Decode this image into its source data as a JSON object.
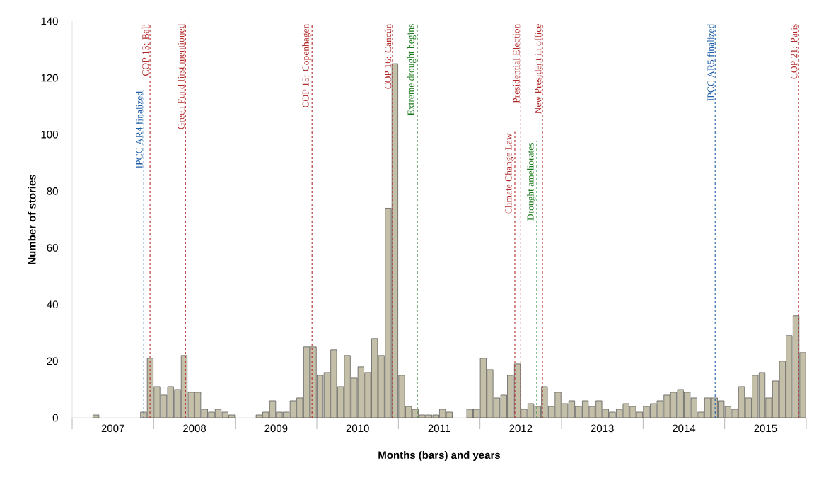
{
  "chart_data": {
    "type": "bar",
    "xlabel": "Months (bars) and years",
    "ylabel": "Number of stories",
    "x": [
      "2007-01-16",
      "2007-02-15",
      "2007-03-16",
      "2007-04-16",
      "2007-05-16",
      "2007-06-16",
      "2007-07-16",
      "2007-08-16",
      "2007-09-16",
      "2007-10-16",
      "2007-11-16",
      "2007-12-16",
      "2008-01-16",
      "2008-02-15",
      "2008-03-16",
      "2008-04-16",
      "2008-05-16",
      "2008-06-16",
      "2008-07-16",
      "2008-08-16",
      "2008-09-16",
      "2008-10-16",
      "2008-11-16",
      "2008-12-16",
      "2009-01-16",
      "2009-02-15",
      "2009-03-16",
      "2009-04-16",
      "2009-05-16",
      "2009-06-16",
      "2009-07-16",
      "2009-08-16",
      "2009-09-16",
      "2009-10-16",
      "2009-11-16",
      "2009-12-16",
      "2010-01-16",
      "2010-02-15",
      "2010-03-16",
      "2010-04-16",
      "2010-05-16",
      "2010-06-16",
      "2010-07-16",
      "2010-08-16",
      "2010-09-16",
      "2010-10-16",
      "2010-11-16",
      "2010-12-16",
      "2011-01-16",
      "2011-02-15",
      "2011-03-16",
      "2011-04-16",
      "2011-05-16",
      "2011-06-16",
      "2011-07-16",
      "2011-08-16",
      "2011-09-16",
      "2011-10-16",
      "2011-11-16",
      "2011-12-16",
      "2012-01-16",
      "2012-02-15",
      "2012-03-16",
      "2012-04-16",
      "2012-05-16",
      "2012-06-16",
      "2012-07-16",
      "2012-08-16",
      "2012-09-16",
      "2012-10-16",
      "2012-11-16",
      "2012-12-16",
      "2013-01-16",
      "2013-02-15",
      "2013-03-16",
      "2013-04-16",
      "2013-05-16",
      "2013-06-16",
      "2013-07-16",
      "2013-08-16",
      "2013-09-16",
      "2013-10-16",
      "2013-11-16",
      "2013-12-16",
      "2014-01-16",
      "2014-02-15",
      "2014-03-16",
      "2014-04-16",
      "2014-05-16",
      "2014-06-16",
      "2014-07-16",
      "2014-08-16",
      "2014-09-16",
      "2014-10-16",
      "2014-11-16",
      "2014-12-16",
      "2015-01-16",
      "2015-02-15",
      "2015-03-16",
      "2015-04-16",
      "2015-05-16",
      "2015-06-16",
      "2015-07-16",
      "2015-08-16",
      "2015-09-16",
      "2015-10-16",
      "2015-11-16",
      "2015-12-16"
    ],
    "values": [
      0,
      0,
      0,
      1,
      0,
      0,
      0,
      0,
      0,
      0,
      2,
      21,
      11,
      8,
      11,
      10,
      22,
      9,
      9,
      3,
      2,
      3,
      2,
      1,
      0,
      0,
      0,
      1,
      2,
      6,
      2,
      2,
      6,
      7,
      25,
      25,
      15,
      16,
      24,
      11,
      22,
      14,
      18,
      16,
      28,
      22,
      74,
      125,
      15,
      4,
      3,
      1,
      1,
      1,
      3,
      2,
      0,
      0,
      3,
      3,
      21,
      17,
      7,
      8,
      15,
      19,
      3,
      5,
      4,
      11,
      4,
      9,
      5,
      6,
      4,
      6,
      4,
      6,
      3,
      2,
      3,
      5,
      4,
      2,
      4,
      5,
      6,
      8,
      9,
      10,
      9,
      7,
      2,
      7,
      7,
      6,
      4,
      3,
      11,
      7,
      15,
      16,
      7,
      13,
      20,
      29,
      36,
      23
    ],
    "color": "#c4bfa8",
    "xlim": [
      "2007-01",
      "2016-01"
    ],
    "xticks": [
      {
        "value": "2007-01",
        "label": null
      },
      {
        "value": "2007-07",
        "label": "2007"
      },
      {
        "value": "2008-01",
        "label": null
      },
      {
        "value": "2008-07",
        "label": "2008"
      },
      {
        "value": "2009-01",
        "label": null
      },
      {
        "value": "2009-07",
        "label": "2009"
      },
      {
        "value": "2010-01",
        "label": null
      },
      {
        "value": "2010-07",
        "label": "2010"
      },
      {
        "value": "2011-01",
        "label": null
      },
      {
        "value": "2011-07",
        "label": "2011"
      },
      {
        "value": "2012-01",
        "label": null
      },
      {
        "value": "2012-07",
        "label": "2012"
      },
      {
        "value": "2013-01",
        "label": null
      },
      {
        "value": "2013-07",
        "label": "2013"
      },
      {
        "value": "2014-01",
        "label": null
      },
      {
        "value": "2014-07",
        "label": "2014"
      },
      {
        "value": "2015-01",
        "label": null
      },
      {
        "value": "2015-07",
        "label": "2015"
      },
      {
        "value": "2016-01",
        "label": null
      }
    ],
    "ylim": [
      0,
      140
    ],
    "yticks": [
      0,
      20,
      40,
      60,
      80,
      100,
      120,
      140
    ],
    "ref_lines": [
      {
        "axis": "x",
        "value": "2007-11-17",
        "label": "IPCC AR4 finalized",
        "color": "#1f5fa8",
        "line_style": "dashed"
      },
      {
        "axis": "x",
        "value": "2007-12-15",
        "label": "COP 13: Bali",
        "color": "#b22a2a",
        "line_style": "dashed"
      },
      {
        "axis": "x",
        "value": "2008-05-22",
        "label": "Green Fund first mentioned",
        "color": "#b22a2a",
        "line_style": "dashed"
      },
      {
        "axis": "x",
        "value": "2009-12-10",
        "label": "COP 15: Copenhagen",
        "color": "#b22a2a",
        "line_style": "dashed"
      },
      {
        "axis": "x",
        "value": "2010-12-05",
        "label": "COP 16: Cancún",
        "color": "#b22a2a",
        "line_style": "dashed"
      },
      {
        "axis": "x",
        "value": "2011-03-25",
        "label": "Extreme drought begins",
        "color": "#1a7a1a",
        "line_style": "dashed"
      },
      {
        "axis": "x",
        "value": "2012-06-05",
        "label": "Climate Change Law",
        "color": "#b22a2a",
        "line_style": "dashed"
      },
      {
        "axis": "x",
        "value": "2012-07-01",
        "label": "Presidential Election",
        "color": "#b22a2a",
        "line_style": "dashed"
      },
      {
        "axis": "x",
        "value": "2012-09-12",
        "label": "Drought ameliorates",
        "color": "#1a7a1a",
        "line_style": "dashed"
      },
      {
        "axis": "x",
        "value": "2012-10-07",
        "label": "New President in office",
        "color": "#b22a2a",
        "line_style": "dashed"
      },
      {
        "axis": "x",
        "value": "2014-11-19",
        "label": "IPCC AR5 finalized",
        "color": "#1f5fa8",
        "line_style": "dashed"
      },
      {
        "axis": "x",
        "value": "2015-11-27",
        "label": "COP 21: Paris",
        "color": "#b22a2a",
        "line_style": "dashed"
      }
    ]
  }
}
